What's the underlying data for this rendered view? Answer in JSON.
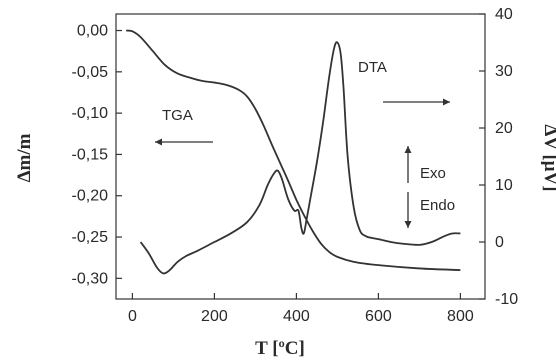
{
  "chart_data": {
    "type": "line",
    "title": "",
    "xlabel": "T [ºC]",
    "ylabel_left": "Δm/m",
    "ylabel_right": "ΔV [μV]",
    "xlim": [
      -40,
      860
    ],
    "ylim_left": [
      -0.325,
      0.02
    ],
    "ylim_right": [
      -10,
      40
    ],
    "x_ticks": [
      0,
      200,
      400,
      600,
      800
    ],
    "x_tick_labels": [
      "0",
      "200",
      "400",
      "600",
      "800"
    ],
    "y_left_ticks": [
      0.0,
      -0.05,
      -0.1,
      -0.15,
      -0.2,
      -0.25,
      -0.3
    ],
    "y_left_tick_labels": [
      "0,00",
      "-0,05",
      "-0,10",
      "-0,15",
      "-0,20",
      "-0,25",
      "-0,30"
    ],
    "y_right_ticks": [
      -10,
      0,
      10,
      20,
      30,
      40
    ],
    "y_right_tick_labels": [
      "-10",
      "0",
      "10",
      "20",
      "30",
      "40"
    ],
    "grid": false,
    "series": [
      {
        "name": "TGA",
        "axis": "left",
        "x": [
          -15,
          0,
          20,
          50,
          80,
          110,
          140,
          170,
          200,
          230,
          260,
          280,
          300,
          320,
          340,
          360,
          380,
          400,
          420,
          440,
          460,
          480,
          500,
          540,
          600,
          700,
          800
        ],
        "y": [
          0.0,
          -0.001,
          -0.008,
          -0.025,
          -0.042,
          -0.052,
          -0.057,
          -0.061,
          -0.063,
          -0.066,
          -0.072,
          -0.08,
          -0.095,
          -0.115,
          -0.138,
          -0.16,
          -0.182,
          -0.205,
          -0.225,
          -0.243,
          -0.258,
          -0.268,
          -0.274,
          -0.28,
          -0.284,
          -0.288,
          -0.29
        ]
      },
      {
        "name": "DTA",
        "axis": "right",
        "x": [
          20,
          40,
          60,
          75,
          90,
          110,
          130,
          160,
          200,
          240,
          280,
          310,
          330,
          345,
          355,
          365,
          380,
          395,
          405,
          412,
          418,
          425,
          435,
          450,
          465,
          480,
          492,
          500,
          508,
          515,
          525,
          540,
          555,
          570,
          585,
          600,
          630,
          660,
          700,
          730,
          760,
          780,
          800
        ],
        "y": [
          0,
          -2,
          -4.5,
          -5.5,
          -5,
          -3.5,
          -2.5,
          -1.5,
          0,
          1.5,
          3.5,
          6.5,
          10,
          12,
          12.5,
          11,
          7.5,
          5.5,
          5.5,
          2.5,
          1.5,
          4,
          8,
          14,
          21,
          29,
          34,
          35,
          33,
          27,
          15,
          6,
          2,
          1,
          0.7,
          0.5,
          0,
          -0.3,
          -0.5,
          0,
          1,
          1.5,
          1.5
        ]
      }
    ],
    "annotations": [
      {
        "text": "TGA",
        "arrow": "left",
        "axis": "left"
      },
      {
        "text": "DTA",
        "arrow": "right",
        "axis": "right"
      },
      {
        "text": "Exo",
        "arrow": "up"
      },
      {
        "text": "Endo",
        "arrow": "down"
      }
    ]
  },
  "colors": {
    "line": "#333333",
    "axis": "#333333",
    "background": "#ffffff"
  }
}
